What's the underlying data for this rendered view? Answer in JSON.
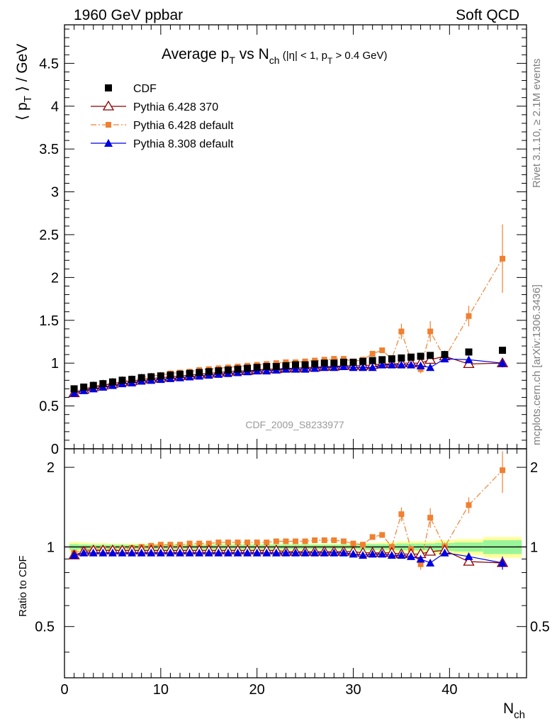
{
  "header": {
    "left": "1960 GeV ppbar",
    "right": "Soft QCD"
  },
  "side_labels": {
    "top": "Rivet 3.1.10, ≥ 2.1M events",
    "bottom": "mcplots.cern.ch [arXiv:1306.3436]"
  },
  "colors": {
    "cdf": "#000000",
    "p6_370": "#8b0000",
    "p6_default": "#f08030",
    "p8_default": "#0000e0",
    "band_inner": "#9af59a",
    "band_outer": "#ffff99"
  },
  "chart_data": [
    {
      "type": "scatter",
      "title_parts": {
        "a": "Average p",
        "a_sub": "T",
        "b": " vs N",
        "b_sub": "ch",
        "c": " (|η| < 1, p",
        "c_sub": "T",
        "d": " > 0.4 GeV)"
      },
      "ylabel_parts": {
        "a": "⟨ p",
        "sub": "T",
        "b": " ⟩ / GeV"
      },
      "watermark": "CDF_2009_S8233977",
      "xlim": [
        0,
        48
      ],
      "ylim": [
        0,
        4.95
      ],
      "yticks": [
        0,
        0.5,
        1,
        1.5,
        2,
        2.5,
        3,
        3.5,
        4,
        4.5
      ],
      "ytick_labels": [
        "0",
        "0.5",
        "1",
        "1.5",
        "2",
        "2.5",
        "3",
        "3.5",
        "4",
        "4.5"
      ],
      "legend": [
        {
          "key": "cdf",
          "label": "CDF"
        },
        {
          "key": "p6_370",
          "label": "Pythia 6.428 370"
        },
        {
          "key": "p6_default",
          "label": "Pythia 6.428 default"
        },
        {
          "key": "p8_default",
          "label": "Pythia 8.308 default"
        }
      ],
      "series": [
        {
          "key": "cdf",
          "name": "CDF",
          "x": [
            1,
            2,
            3,
            4,
            5,
            6,
            7,
            8,
            9,
            10,
            11,
            12,
            13,
            14,
            15,
            16,
            17,
            18,
            19,
            20,
            21,
            22,
            23,
            24,
            25,
            26,
            27,
            28,
            29,
            30,
            31,
            32,
            33,
            34,
            35,
            36,
            37,
            38,
            39.5,
            42,
            45.5
          ],
          "y": [
            0.7,
            0.72,
            0.74,
            0.76,
            0.78,
            0.8,
            0.81,
            0.83,
            0.84,
            0.85,
            0.86,
            0.87,
            0.88,
            0.89,
            0.9,
            0.91,
            0.92,
            0.93,
            0.94,
            0.95,
            0.96,
            0.96,
            0.97,
            0.98,
            0.98,
            0.99,
            1.0,
            1.0,
            1.01,
            1.01,
            1.02,
            1.03,
            1.04,
            1.05,
            1.06,
            1.07,
            1.08,
            1.09,
            1.1,
            1.13,
            1.15
          ]
        },
        {
          "key": "p6_370",
          "name": "Pythia 6.428 370",
          "x": [
            1,
            2,
            3,
            4,
            5,
            6,
            7,
            8,
            9,
            10,
            11,
            12,
            13,
            14,
            15,
            16,
            17,
            18,
            19,
            20,
            21,
            22,
            23,
            24,
            25,
            26,
            27,
            28,
            29,
            30,
            31,
            32,
            33,
            34,
            35,
            36,
            37,
            38,
            39.5,
            42,
            45.5
          ],
          "y": [
            0.65,
            0.69,
            0.72,
            0.74,
            0.76,
            0.78,
            0.79,
            0.81,
            0.82,
            0.83,
            0.84,
            0.85,
            0.86,
            0.87,
            0.88,
            0.89,
            0.9,
            0.91,
            0.91,
            0.92,
            0.93,
            0.93,
            0.94,
            0.94,
            0.95,
            0.95,
            0.96,
            0.96,
            0.97,
            0.97,
            0.97,
            0.98,
            0.99,
            0.99,
            1.0,
            1.0,
            1.0,
            1.04,
            1.08,
            0.99,
            1.0
          ]
        },
        {
          "key": "p6_default",
          "name": "Pythia 6.428 default",
          "x": [
            1,
            2,
            3,
            4,
            5,
            6,
            7,
            8,
            9,
            10,
            11,
            12,
            13,
            14,
            15,
            16,
            17,
            18,
            19,
            20,
            21,
            22,
            23,
            24,
            25,
            26,
            27,
            28,
            29,
            30,
            31,
            32,
            33,
            34,
            35,
            36,
            37,
            38,
            39.5,
            42,
            45.5
          ],
          "y": [
            0.67,
            0.7,
            0.73,
            0.75,
            0.77,
            0.79,
            0.81,
            0.83,
            0.85,
            0.86,
            0.88,
            0.89,
            0.9,
            0.92,
            0.93,
            0.94,
            0.95,
            0.96,
            0.97,
            0.98,
            0.99,
            1.0,
            1.01,
            1.01,
            1.02,
            1.03,
            1.04,
            1.05,
            1.05,
            1.02,
            1.04,
            1.11,
            1.15,
            1.05,
            1.37,
            1.03,
            0.93,
            1.37,
            1.06,
            1.55,
            2.22
          ],
          "yerr": [
            0,
            0,
            0,
            0,
            0,
            0,
            0,
            0,
            0,
            0,
            0,
            0,
            0,
            0,
            0,
            0,
            0,
            0,
            0,
            0,
            0,
            0,
            0,
            0,
            0,
            0,
            0,
            0,
            0,
            0,
            0,
            0.02,
            0.02,
            0.03,
            0.09,
            0.03,
            0.05,
            0.12,
            0.05,
            0.12,
            0.4
          ]
        },
        {
          "key": "p8_default",
          "name": "Pythia 8.308 default",
          "x": [
            1,
            2,
            3,
            4,
            5,
            6,
            7,
            8,
            9,
            10,
            11,
            12,
            13,
            14,
            15,
            16,
            17,
            18,
            19,
            20,
            21,
            22,
            23,
            24,
            25,
            26,
            27,
            28,
            29,
            30,
            31,
            32,
            33,
            34,
            35,
            36,
            37,
            38,
            39.5,
            42,
            45.5
          ],
          "y": [
            0.65,
            0.68,
            0.7,
            0.72,
            0.74,
            0.76,
            0.77,
            0.79,
            0.8,
            0.81,
            0.82,
            0.83,
            0.84,
            0.85,
            0.86,
            0.87,
            0.88,
            0.89,
            0.9,
            0.91,
            0.91,
            0.92,
            0.93,
            0.93,
            0.93,
            0.94,
            0.95,
            0.95,
            0.96,
            0.95,
            0.95,
            0.95,
            0.98,
            0.98,
            0.98,
            0.98,
            0.97,
            0.95,
            1.05,
            1.04,
            1.0
          ],
          "yerr": [
            0,
            0,
            0,
            0,
            0,
            0,
            0,
            0,
            0,
            0,
            0,
            0,
            0,
            0,
            0,
            0,
            0,
            0,
            0,
            0,
            0,
            0,
            0,
            0,
            0,
            0,
            0,
            0,
            0,
            0,
            0,
            0,
            0,
            0,
            0,
            0,
            0,
            0,
            0.02,
            0.02,
            0.05
          ]
        }
      ]
    },
    {
      "type": "scatter",
      "ylabel": "Ratio to CDF",
      "xlabel_parts": {
        "a": "N",
        "sub": "ch"
      },
      "xlim": [
        0,
        48
      ],
      "ylim": [
        0.32,
        2.35
      ],
      "xticks": [
        0,
        10,
        20,
        30,
        40
      ],
      "xtick_labels": [
        "0",
        "10",
        "20",
        "30",
        "40"
      ],
      "yticks": [
        0.5,
        1,
        2
      ],
      "ytick_labels": [
        "0.5",
        "1",
        "2"
      ],
      "band": {
        "x": [
          0.5,
          1.5,
          2.5,
          3.5,
          4.5,
          5.5,
          6.5,
          7.5,
          8.5,
          9.5,
          10.5,
          11.5,
          12.5,
          13.5,
          14.5,
          15.5,
          16.5,
          17.5,
          18.5,
          19.5,
          20.5,
          21.5,
          22.5,
          23.5,
          24.5,
          25.5,
          26.5,
          27.5,
          28.5,
          29.5,
          30.5,
          31.5,
          32.5,
          33.5,
          34.5,
          35.5,
          36.5,
          37.5,
          38.5,
          40.5,
          43.5,
          47.5
        ],
        "inner": [
          0.025,
          0.022,
          0.02,
          0.02,
          0.02,
          0.02,
          0.02,
          0.02,
          0.02,
          0.02,
          0.02,
          0.02,
          0.02,
          0.02,
          0.02,
          0.02,
          0.02,
          0.02,
          0.02,
          0.02,
          0.02,
          0.02,
          0.02,
          0.02,
          0.02,
          0.02,
          0.02,
          0.02,
          0.02,
          0.02,
          0.025,
          0.025,
          0.025,
          0.025,
          0.03,
          0.03,
          0.03,
          0.03,
          0.035,
          0.04,
          0.06
        ],
        "outer": [
          0.045,
          0.04,
          0.035,
          0.035,
          0.03,
          0.03,
          0.03,
          0.03,
          0.03,
          0.03,
          0.03,
          0.03,
          0.03,
          0.03,
          0.03,
          0.03,
          0.03,
          0.03,
          0.03,
          0.03,
          0.03,
          0.03,
          0.03,
          0.03,
          0.03,
          0.03,
          0.03,
          0.03,
          0.03,
          0.03,
          0.035,
          0.035,
          0.04,
          0.04,
          0.05,
          0.05,
          0.05,
          0.05,
          0.06,
          0.07,
          0.09
        ]
      },
      "series": [
        {
          "key": "p6_370",
          "name": "Pythia 6.428 370",
          "x": [
            1,
            2,
            3,
            4,
            5,
            6,
            7,
            8,
            9,
            10,
            11,
            12,
            13,
            14,
            15,
            16,
            17,
            18,
            19,
            20,
            21,
            22,
            23,
            24,
            25,
            26,
            27,
            28,
            29,
            30,
            31,
            32,
            33,
            34,
            35,
            36,
            37,
            38,
            39.5,
            42,
            45.5
          ],
          "y": [
            0.93,
            0.96,
            0.97,
            0.97,
            0.97,
            0.97,
            0.97,
            0.97,
            0.97,
            0.97,
            0.97,
            0.97,
            0.97,
            0.97,
            0.97,
            0.97,
            0.97,
            0.97,
            0.97,
            0.97,
            0.97,
            0.97,
            0.96,
            0.96,
            0.96,
            0.96,
            0.96,
            0.96,
            0.96,
            0.96,
            0.95,
            0.95,
            0.95,
            0.95,
            0.94,
            0.94,
            0.94,
            0.96,
            0.97,
            0.88,
            0.87
          ]
        },
        {
          "key": "p6_default",
          "name": "Pythia 6.428 default",
          "x": [
            1,
            2,
            3,
            4,
            5,
            6,
            7,
            8,
            9,
            10,
            11,
            12,
            13,
            14,
            15,
            16,
            17,
            18,
            19,
            20,
            21,
            22,
            23,
            24,
            25,
            26,
            27,
            28,
            29,
            30,
            31,
            32,
            33,
            34,
            35,
            36,
            37,
            38,
            39.5,
            42,
            45.5
          ],
          "y": [
            0.95,
            0.97,
            0.98,
            0.98,
            0.98,
            0.98,
            0.99,
            1.0,
            1.01,
            1.02,
            1.02,
            1.02,
            1.03,
            1.03,
            1.03,
            1.04,
            1.04,
            1.04,
            1.04,
            1.04,
            1.04,
            1.05,
            1.05,
            1.05,
            1.05,
            1.06,
            1.06,
            1.06,
            1.05,
            1.03,
            1.02,
            1.09,
            1.11,
            1.0,
            1.33,
            0.98,
            0.86,
            1.29,
            1.0,
            1.44,
            1.95
          ],
          "yerr": [
            0,
            0,
            0,
            0,
            0,
            0,
            0,
            0,
            0,
            0,
            0,
            0,
            0,
            0,
            0,
            0,
            0,
            0,
            0,
            0,
            0,
            0,
            0,
            0,
            0,
            0,
            0,
            0,
            0,
            0,
            0,
            0.02,
            0.02,
            0.03,
            0.08,
            0.03,
            0.04,
            0.11,
            0.04,
            0.1,
            0.35
          ]
        },
        {
          "key": "p8_default",
          "name": "Pythia 8.308 default",
          "x": [
            1,
            2,
            3,
            4,
            5,
            6,
            7,
            8,
            9,
            10,
            11,
            12,
            13,
            14,
            15,
            16,
            17,
            18,
            19,
            20,
            21,
            22,
            23,
            24,
            25,
            26,
            27,
            28,
            29,
            30,
            31,
            32,
            33,
            34,
            35,
            36,
            37,
            38,
            39.5,
            42,
            45.5
          ],
          "y": [
            0.93,
            0.95,
            0.95,
            0.95,
            0.95,
            0.95,
            0.95,
            0.95,
            0.95,
            0.95,
            0.95,
            0.95,
            0.95,
            0.95,
            0.95,
            0.95,
            0.95,
            0.95,
            0.95,
            0.95,
            0.95,
            0.95,
            0.95,
            0.95,
            0.95,
            0.95,
            0.95,
            0.95,
            0.95,
            0.94,
            0.93,
            0.94,
            0.94,
            0.93,
            0.93,
            0.92,
            0.9,
            0.87,
            0.95,
            0.92,
            0.87
          ],
          "yerr": [
            0,
            0,
            0,
            0,
            0,
            0,
            0,
            0,
            0,
            0,
            0,
            0,
            0,
            0,
            0,
            0,
            0,
            0,
            0,
            0,
            0,
            0,
            0,
            0,
            0,
            0,
            0,
            0,
            0,
            0,
            0,
            0,
            0,
            0,
            0,
            0,
            0,
            0,
            0.02,
            0.02,
            0.05
          ]
        }
      ]
    }
  ]
}
